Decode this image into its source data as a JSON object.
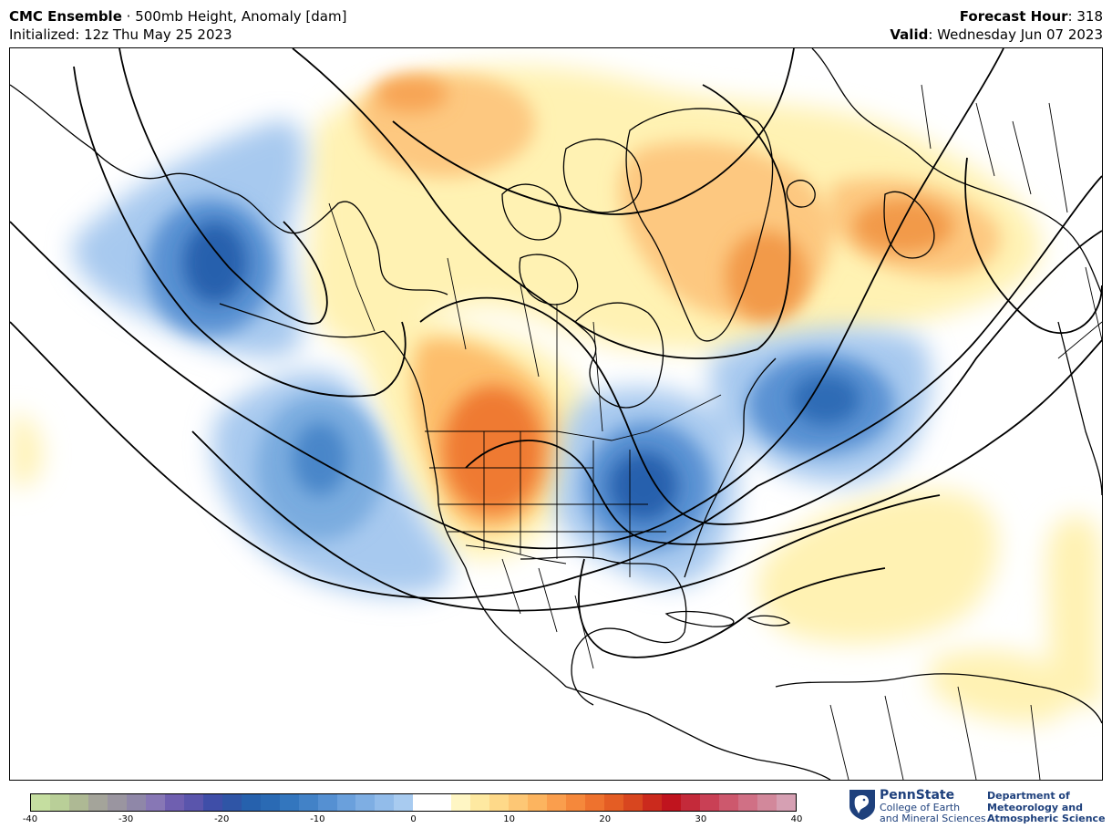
{
  "header": {
    "model": "CMC Ensemble",
    "separator": " · ",
    "product": "500mb Height, Anomaly [dam]",
    "initialized": "Initialized: 12z Thu May 25 2023",
    "forecast_hour_label": "Forecast Hour",
    "forecast_hour_value": ": 318",
    "valid_label": "Valid",
    "valid_value": ": Wednesday Jun 07 2023"
  },
  "colorbar": {
    "ticks": [
      "-40",
      "-30",
      "-20",
      "-10",
      "0",
      "10",
      "20",
      "30",
      "40"
    ],
    "colors": [
      "#c5dea0",
      "#b9cf98",
      "#aeb994",
      "#a4a49a",
      "#9a95a0",
      "#8f87a8",
      "#8777b5",
      "#6f5fb0",
      "#5a55ac",
      "#3f4ea8",
      "#2f55a6",
      "#2661ad",
      "#2a6ab4",
      "#3376be",
      "#4282c7",
      "#5590d2",
      "#6aa0dc",
      "#7eaee3",
      "#92bcea",
      "#a8cbf0",
      "#ffffff",
      "#ffffff",
      "#fff6c4",
      "#fee9a1",
      "#fed989",
      "#fdc775",
      "#fcb45f",
      "#fa9e4d",
      "#f5883b",
      "#ee722e",
      "#e45d24",
      "#d8461f",
      "#cb2a1d",
      "#c0141e",
      "#c42a3a",
      "#c94055",
      "#cd586d",
      "#d07085",
      "#d2889b",
      "#d6a0b3"
    ]
  },
  "map": {
    "anomaly_colors": {
      "negative_strong": "#2560ad",
      "negative_mid": "#5a92d3",
      "negative_weak": "#a7c9ef",
      "positive_weak": "#fff2b3",
      "positive_mid": "#fdbe6c",
      "positive_strong": "#ef7a30"
    },
    "contour_color": "#000000"
  },
  "logos": {
    "psu_name": "PennState",
    "psu_line2": "College of Earth",
    "psu_line3": "and Mineral Sciences",
    "dept_line1": "Department of",
    "dept_line2": "Meteorology and",
    "dept_line3": "Atmospheric Science"
  }
}
